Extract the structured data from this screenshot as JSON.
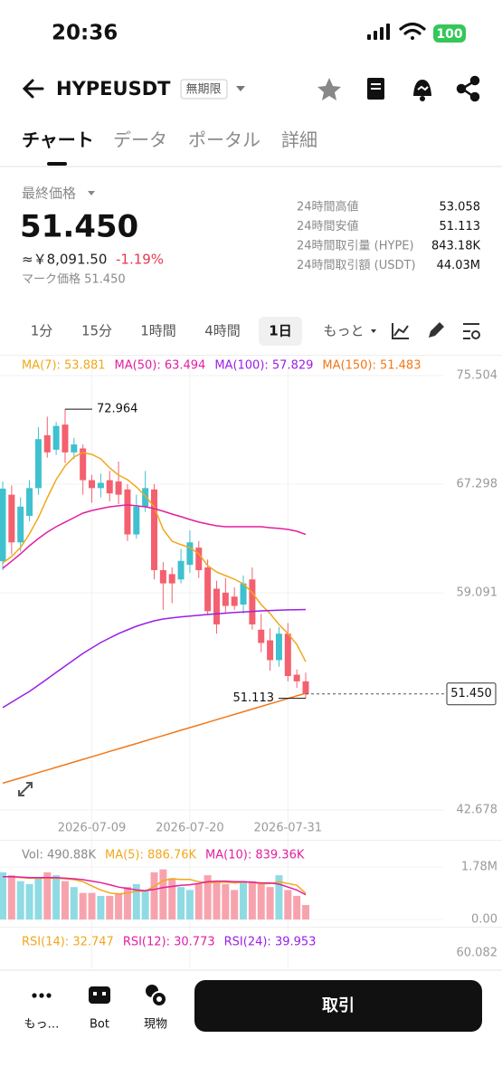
{
  "status": {
    "time": "20:36",
    "battery": "100"
  },
  "header": {
    "symbol": "HYPEUSDT",
    "badge": "無期限"
  },
  "tabs": {
    "items": [
      "チャート",
      "データ",
      "ポータル",
      "詳細"
    ],
    "selected": 0
  },
  "price_panel": {
    "label": "最終価格",
    "last": "51.450",
    "approx": "≈￥8,091.50",
    "change": "-1.19%",
    "mark": "マーク価格 51.450",
    "stats": [
      [
        "24時間高値",
        "53.058"
      ],
      [
        "24時間安値",
        "51.113"
      ],
      [
        "24時間取引量 (HYPE)",
        "843.18K"
      ],
      [
        "24時間取引額 (USDT)",
        "44.03M"
      ]
    ]
  },
  "timeframes": {
    "items": [
      "1分",
      "15分",
      "1時間",
      "4時間",
      "1日",
      "もっと"
    ],
    "selected": 4
  },
  "chart_data": [
    {
      "type": "candlestick",
      "x": [
        "2026-06-29",
        "2026-06-30",
        "2026-07-01",
        "2026-07-02",
        "2026-07-03",
        "2026-07-04",
        "2026-07-05",
        "2026-07-06",
        "2026-07-07",
        "2026-07-08",
        "2026-07-09",
        "2026-07-10",
        "2026-07-11",
        "2026-07-12",
        "2026-07-13",
        "2026-07-14",
        "2026-07-15",
        "2026-07-16",
        "2026-07-17",
        "2026-07-18",
        "2026-07-19",
        "2026-07-20",
        "2026-07-21",
        "2026-07-22",
        "2026-07-23",
        "2026-07-24",
        "2026-07-25",
        "2026-07-26",
        "2026-07-27",
        "2026-07-28",
        "2026-07-29",
        "2026-07-30",
        "2026-07-31",
        "2026-08-01",
        "2026-08-02"
      ],
      "open": [
        61.48,
        66.5,
        62.9,
        64.9,
        67.0,
        71.0,
        69.9,
        71.8,
        69.7,
        70.0,
        67.6,
        67.0,
        67.6,
        67.5,
        66.9,
        63.5,
        65.6,
        66.9,
        60.8,
        60.5,
        60.1,
        61.2,
        62.5,
        61.0,
        59.4,
        59.1,
        58.8,
        58.2,
        60.1,
        56.3,
        55.5,
        54.0,
        56.0,
        52.9,
        52.4
      ],
      "high": [
        67.5,
        67.2,
        66.3,
        67.6,
        71.6,
        72.4,
        72.0,
        72.964,
        70.8,
        70.3,
        68.0,
        68.1,
        68.3,
        69.0,
        67.3,
        66.5,
        68.3,
        67.3,
        61.4,
        61.0,
        62.4,
        63.8,
        63.0,
        61.6,
        60.0,
        60.2,
        59.5,
        60.4,
        61.0,
        57.5,
        56.4,
        56.5,
        56.8,
        53.3,
        53.058
      ],
      "low": [
        60.8,
        62.0,
        62.2,
        64.5,
        66.5,
        69.3,
        69.5,
        68.9,
        69.2,
        66.5,
        65.9,
        66.3,
        66.0,
        65.8,
        63.0,
        63.2,
        65.2,
        60.1,
        57.8,
        58.3,
        59.8,
        60.6,
        60.2,
        57.4,
        56.0,
        57.5,
        57.8,
        57.5,
        56.3,
        54.6,
        53.2,
        53.5,
        52.4,
        51.9,
        51.113
      ],
      "close": [
        66.96,
        62.9,
        65.6,
        67.0,
        70.7,
        69.7,
        71.7,
        69.7,
        70.3,
        67.6,
        67.0,
        67.4,
        66.6,
        66.5,
        63.5,
        65.6,
        67.0,
        60.8,
        59.8,
        59.8,
        61.5,
        62.9,
        60.8,
        57.7,
        56.7,
        58.1,
        58.1,
        59.8,
        56.7,
        55.3,
        54.0,
        56.0,
        52.8,
        52.4,
        51.45
      ],
      "up_color": "#3fc1cf",
      "down_color": "#f4606f",
      "series": [
        {
          "name": "MA(7): 53.881",
          "color": "#f0a81c",
          "values": [
            61.35,
            61.83,
            62.51,
            63.54,
            64.77,
            66.27,
            67.64,
            68.67,
            69.35,
            69.69,
            69.55,
            69.21,
            68.53,
            67.98,
            67.64,
            67.09,
            66.41,
            65.59,
            63.88,
            62.99,
            62.72,
            62.51,
            62.03,
            61.14,
            60.66,
            60.39,
            60.12,
            59.77,
            59.09,
            58.2,
            57.52,
            56.7,
            56.01,
            55.19,
            53.881
          ]
        },
        {
          "name": "MA(50): 63.494",
          "color": "#e21fa0",
          "values": [
            60.94,
            61.48,
            62.03,
            62.65,
            63.19,
            63.67,
            64.08,
            64.43,
            64.77,
            65.11,
            65.31,
            65.45,
            65.59,
            65.66,
            65.73,
            65.66,
            65.59,
            65.45,
            65.25,
            65.04,
            64.84,
            64.63,
            64.43,
            64.29,
            64.15,
            64.08,
            64.08,
            64.08,
            64.08,
            64.08,
            64.01,
            63.95,
            63.88,
            63.74,
            63.494
          ]
        },
        {
          "name": "MA(100): 57.829",
          "color": "#9a1fe6",
          "values": [
            50.41,
            50.82,
            51.23,
            51.64,
            52.11,
            52.59,
            53.07,
            53.55,
            54.03,
            54.51,
            54.92,
            55.33,
            55.67,
            56.01,
            56.29,
            56.56,
            56.77,
            56.97,
            57.11,
            57.2,
            57.27,
            57.33,
            57.39,
            57.45,
            57.5,
            57.55,
            57.6,
            57.64,
            57.68,
            57.72,
            57.75,
            57.78,
            57.8,
            57.81,
            57.829
          ]
        },
        {
          "name": "MA(150): 51.483",
          "color": "#f27818",
          "values": [
            44.7,
            44.9,
            45.1,
            45.3,
            45.5,
            45.7,
            45.9,
            46.1,
            46.3,
            46.5,
            46.7,
            46.9,
            47.1,
            47.3,
            47.5,
            47.7,
            47.9,
            48.1,
            48.3,
            48.5,
            48.7,
            48.9,
            49.1,
            49.3,
            49.5,
            49.7,
            49.9,
            50.1,
            50.3,
            50.5,
            50.7,
            50.9,
            51.1,
            51.3,
            51.483
          ]
        }
      ],
      "last_price": {
        "value": 51.45,
        "label": "51.450"
      },
      "xlim": [
        "2026-06-29",
        "2026-08-02"
      ],
      "xticks": [
        "2026-07-09",
        "2026-07-20",
        "2026-07-31"
      ],
      "ylim": [
        42.678,
        75.504
      ],
      "yticks": [
        75.504,
        67.298,
        59.091,
        42.678
      ],
      "grid": true
    },
    {
      "type": "bar",
      "title": "Vol: 490.88K",
      "values": [
        1600000,
        1500000,
        1300000,
        1200000,
        1400000,
        1600000,
        1500000,
        1300000,
        1100000,
        900000,
        900000,
        800000,
        800000,
        900000,
        1100000,
        1200000,
        1000000,
        1600000,
        1700000,
        1400000,
        1100000,
        1000000,
        1200000,
        1500000,
        1300000,
        1200000,
        1000000,
        1300000,
        1300000,
        1200000,
        1100000,
        1500000,
        1000000,
        800000,
        490880
      ],
      "up_color": "#8fdbe4",
      "down_color": "#f7a3ae",
      "series": [
        {
          "name": "MA(5): 886.76K",
          "color": "#f0a81c",
          "values": [
            1450000,
            1450000,
            1420000,
            1400000,
            1400000,
            1400000,
            1400000,
            1380000,
            1350000,
            1280000,
            1140000,
            1000000,
            900000,
            860000,
            900000,
            960000,
            960000,
            1120000,
            1320000,
            1380000,
            1360000,
            1360000,
            1280000,
            1240000,
            1260000,
            1260000,
            1240000,
            1260000,
            1260000,
            1200000,
            1220000,
            1280000,
            1220000,
            1160000,
            886760
          ]
        },
        {
          "name": "MA(10): 839.36K",
          "color": "#e21fa0",
          "values": [
            1450000,
            1450000,
            1440000,
            1420000,
            1420000,
            1420000,
            1420000,
            1400000,
            1380000,
            1350000,
            1300000,
            1250000,
            1180000,
            1100000,
            1050000,
            1000000,
            980000,
            1020000,
            1080000,
            1120000,
            1160000,
            1180000,
            1220000,
            1280000,
            1300000,
            1300000,
            1280000,
            1280000,
            1260000,
            1240000,
            1240000,
            1200000,
            1100000,
            1000000,
            839360
          ]
        }
      ],
      "ylim": [
        0,
        1780000
      ],
      "yticks": [
        {
          "value": 1780000,
          "label": "1.78M"
        },
        {
          "value": 0,
          "label": "0.00"
        }
      ]
    }
  ],
  "rsi_panel": {
    "series": [
      {
        "name": "RSI(14): 32.747",
        "color": "#f0a81c"
      },
      {
        "name": "RSI(12): 30.773",
        "color": "#e21fa0"
      },
      {
        "name": "RSI(24): 39.953",
        "color": "#9a1fe6"
      }
    ],
    "tick": "60.082"
  },
  "bottom_nav": {
    "items": [
      "もっ…",
      "Bot",
      "現物"
    ],
    "action": "取引"
  }
}
